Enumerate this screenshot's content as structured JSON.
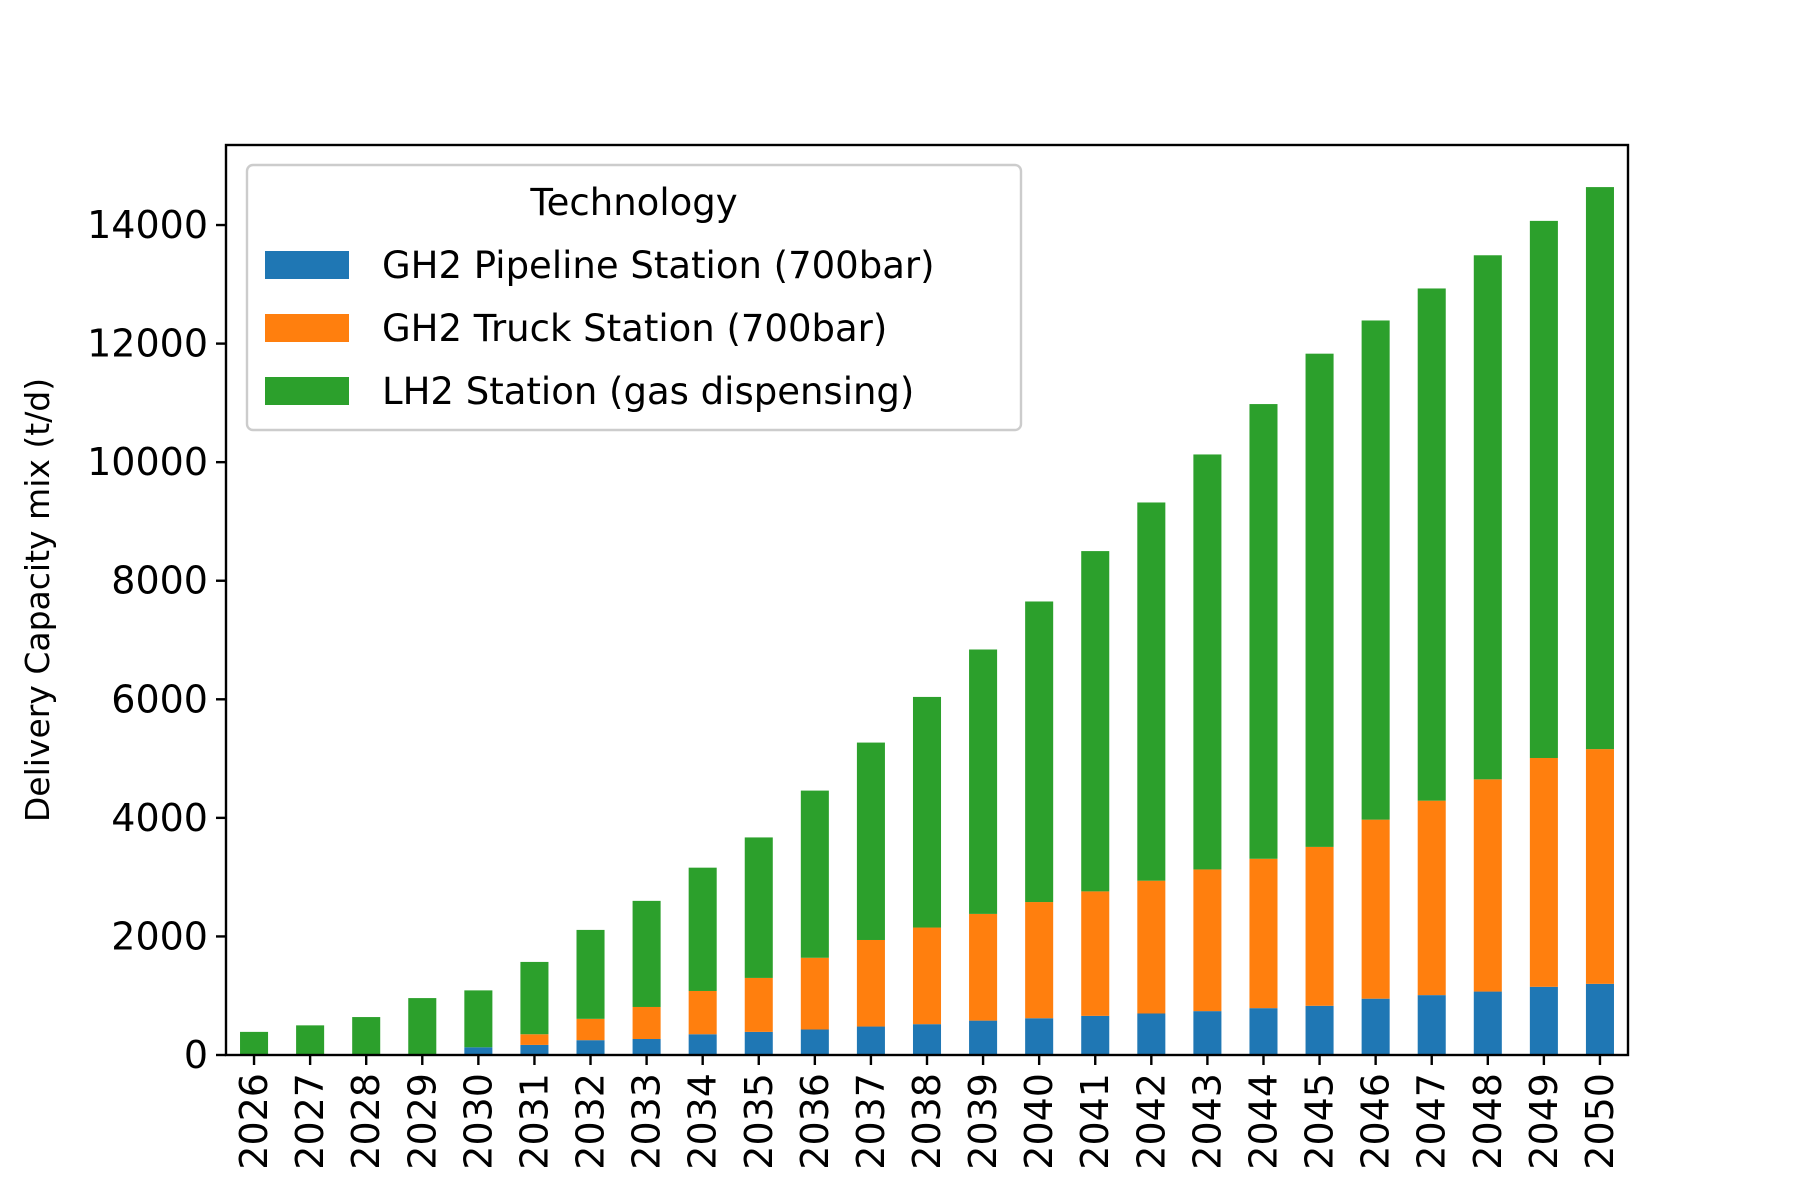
{
  "chart_data": {
    "type": "bar",
    "stacked": true,
    "title": "",
    "xlabel": "",
    "ylabel": "Delivery Capacity mix (t/d)",
    "ylim": [
      0,
      15350
    ],
    "yticks": [
      0,
      2000,
      4000,
      6000,
      8000,
      10000,
      12000,
      14000
    ],
    "grid": false,
    "legend": {
      "title": "Technology",
      "placement": "top-left"
    },
    "categories": [
      "2026",
      "2027",
      "2028",
      "2029",
      "2030",
      "2031",
      "2032",
      "2033",
      "2034",
      "2035",
      "2036",
      "2037",
      "2038",
      "2039",
      "2040",
      "2041",
      "2042",
      "2043",
      "2044",
      "2045",
      "2046",
      "2047",
      "2048",
      "2049",
      "2050"
    ],
    "series": [
      {
        "name": "GH2 Pipeline Station (700bar)",
        "color": "#1f77b4",
        "values": [
          0,
          0,
          0,
          0,
          130,
          170,
          250,
          270,
          350,
          390,
          430,
          480,
          520,
          580,
          620,
          660,
          700,
          740,
          790,
          830,
          950,
          1010,
          1070,
          1150,
          1200
        ]
      },
      {
        "name": "GH2 Truck Station (700bar)",
        "color": "#ff7f0e",
        "values": [
          0,
          0,
          0,
          0,
          0,
          180,
          360,
          540,
          730,
          910,
          1210,
          1460,
          1630,
          1800,
          1960,
          2100,
          2240,
          2390,
          2520,
          2680,
          3020,
          3280,
          3580,
          3860,
          3960
        ]
      },
      {
        "name": "LH2 Station (gas dispensing)",
        "color": "#2ca02c",
        "values": [
          390,
          500,
          640,
          960,
          960,
          1220,
          1500,
          1790,
          2080,
          2370,
          2820,
          3330,
          3890,
          4460,
          5070,
          5740,
          6380,
          7000,
          7670,
          8320,
          8420,
          8640,
          8840,
          9060,
          9480
        ]
      }
    ]
  }
}
